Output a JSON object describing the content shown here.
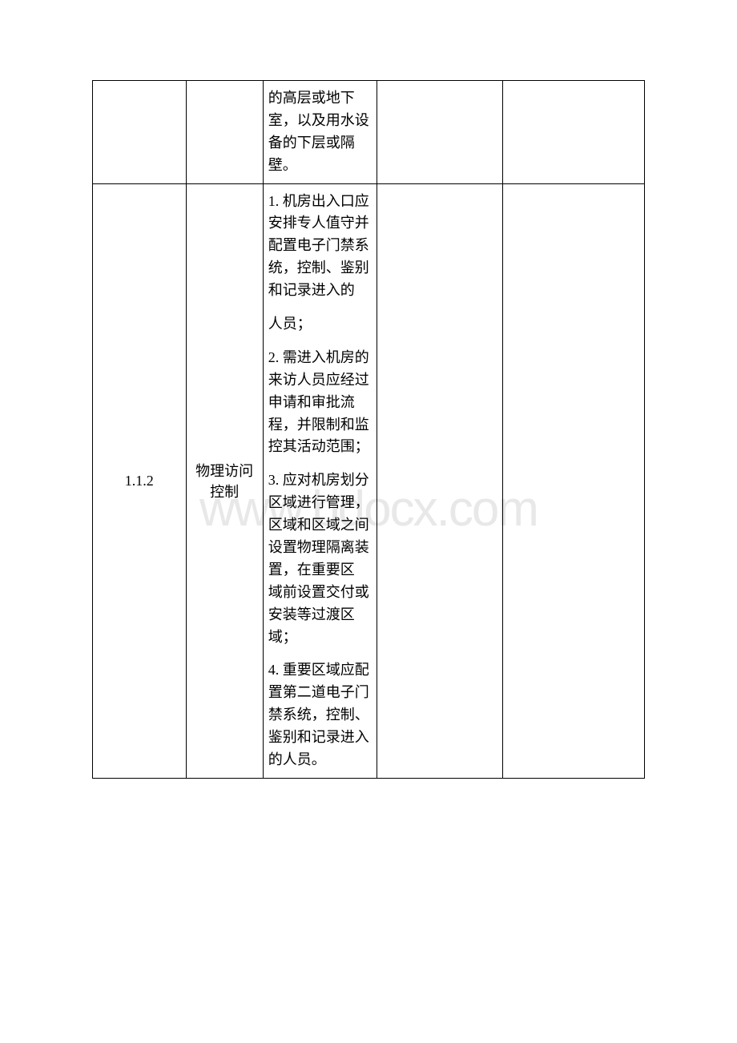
{
  "watermark": "www.bdocx.com",
  "table": {
    "border_color": "#000000",
    "text_color": "#000000",
    "font_size": 18,
    "rows": [
      {
        "col1": "",
        "col2": "",
        "col3_text": "的高层或地下室，以及用水设备的下层或隔壁。",
        "col4": "",
        "col5": ""
      },
      {
        "col1": "1.1.2",
        "col2": "物理访问控制",
        "col3_items": [
          {
            "num": "1.",
            "text": "机房出入口应安排专人值守并配置电子门禁系统，控制、鉴别和记录进入的"
          },
          {
            "num": "",
            "text": "人员；"
          },
          {
            "num": "2.",
            "text": "需进入机房的来访人员应经过申请和审批流程，并限制和监控其活动范围；"
          },
          {
            "num": "3.",
            "text": "应对机房划分区域进行管理，区域和区域之间设置物理隔离装置，在重要区 域前设置交付或安装等过渡区域；"
          },
          {
            "num": "4.",
            "text": "重要区域应配置第二道电子门禁系统，控制、鉴别和记录进入的人员。"
          }
        ],
        "col4": "",
        "col5": ""
      }
    ]
  }
}
